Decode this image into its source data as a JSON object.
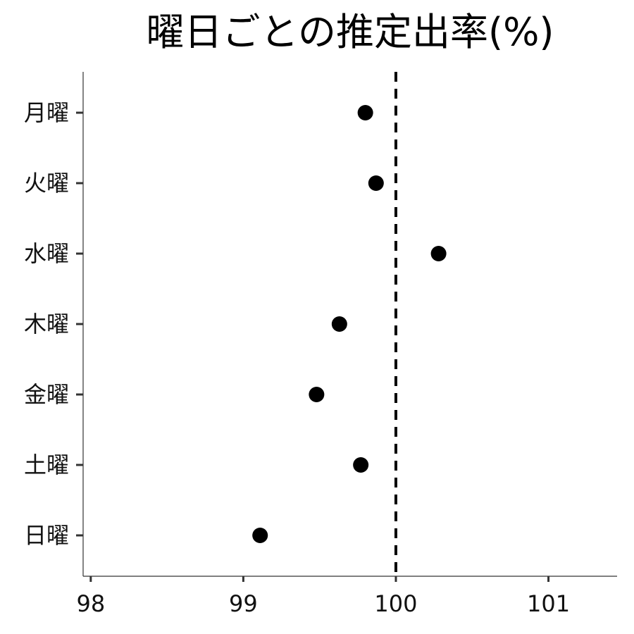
{
  "chart_data": {
    "type": "scatter",
    "title": "曜日ごとの推定出率(%)",
    "xlabel": "",
    "ylabel": "",
    "xlim": [
      97.95,
      101.45
    ],
    "xticks": [
      98,
      99,
      100,
      101
    ],
    "categories": [
      "月曜",
      "火曜",
      "水曜",
      "木曜",
      "金曜",
      "土曜",
      "日曜"
    ],
    "values": [
      99.8,
      99.87,
      100.28,
      99.63,
      99.48,
      99.77,
      99.11
    ],
    "reference_line": 100,
    "grid": false,
    "legend": "none",
    "point_color": "#000000"
  }
}
